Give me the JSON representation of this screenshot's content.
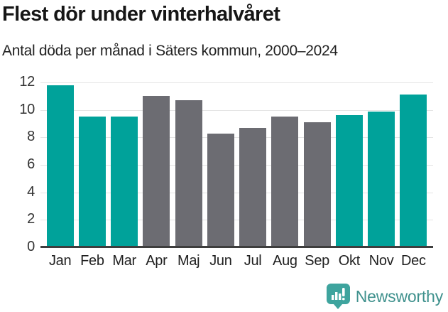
{
  "header": {
    "title": "Flest dör under vinterhalvåret",
    "subtitle": "Antal döda per månad i Säters kommun, 2000–2024"
  },
  "chart_data": {
    "type": "bar",
    "title": "Flest dör under vinterhalvåret",
    "subtitle": "Antal döda per månad i Säters kommun, 2000–2024",
    "categories": [
      "Jan",
      "Feb",
      "Mar",
      "Apr",
      "Maj",
      "Jun",
      "Jul",
      "Aug",
      "Sep",
      "Okt",
      "Nov",
      "Dec"
    ],
    "values": [
      11.8,
      9.5,
      9.5,
      11.0,
      10.7,
      8.3,
      8.7,
      9.5,
      9.1,
      9.6,
      9.9,
      11.1
    ],
    "highlighted": [
      true,
      true,
      true,
      false,
      false,
      false,
      false,
      false,
      false,
      true,
      true,
      true
    ],
    "xlabel": "",
    "ylabel": "",
    "ylim": [
      0,
      12
    ],
    "yticks": [
      0,
      2,
      4,
      6,
      8,
      10,
      12
    ],
    "grid": true,
    "legend": "none",
    "colors": {
      "highlight": "#00a29a",
      "default": "#6c6c72",
      "gridline": "#e4e4e4",
      "axis": "#3e3e3e",
      "tick_label": "#333333"
    }
  },
  "footer": {
    "brand": "Newsworthy",
    "brand_color": "#3f918d",
    "icon": "newsworthy-speech-bubble-barchart-icon",
    "icon_color": "#3ea49e"
  }
}
